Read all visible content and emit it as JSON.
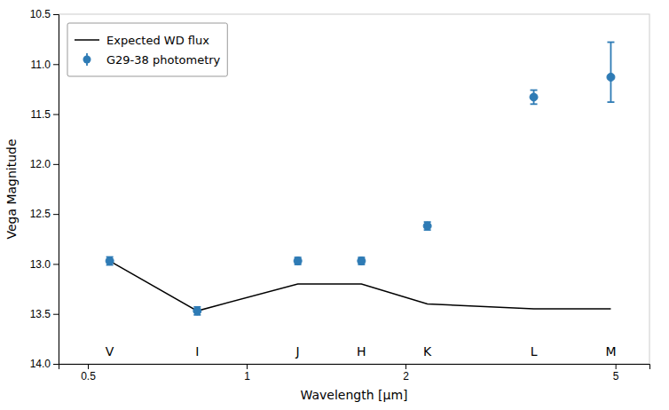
{
  "chart_data": {
    "type": "line",
    "xlabel": "Wavelength [μm]",
    "ylabel": "Vega Magnitude",
    "log": "x",
    "xlim": [
      0.44,
      5.8
    ],
    "xticks": [
      0.5,
      1,
      2,
      5
    ],
    "ylim": [
      14.0,
      10.5
    ],
    "yticks": [
      10.5,
      {
        "value": 11,
        "label": "11.0"
      },
      11.5,
      {
        "value": 12,
        "label": "12.0"
      },
      12.5,
      {
        "value": 13,
        "label": "13.0"
      },
      13.5,
      {
        "value": 14,
        "label": "14.0"
      }
    ],
    "grid": false,
    "legend": "upper left",
    "series": [
      {
        "name": "Expected WD flux",
        "type": "line",
        "color": "#000000",
        "x": [
          0.55,
          0.806,
          1.25,
          1.65,
          2.2,
          3.5,
          4.9
        ],
        "values": [
          12.97,
          13.47,
          13.2,
          13.2,
          13.4,
          13.45,
          13.45
        ]
      },
      {
        "name": "G29-38 photometry",
        "type": "scatter",
        "color": "#2e7bb5",
        "marker": "circle",
        "x": [
          0.55,
          0.806,
          1.25,
          1.65,
          2.2,
          3.5,
          4.9
        ],
        "values": [
          12.97,
          13.47,
          12.97,
          12.97,
          12.62,
          11.33,
          11.13
        ],
        "error_lo": [
          0.04,
          0.04,
          0.035,
          0.035,
          0.04,
          0.07,
          0.35
        ],
        "error_hi": [
          0.04,
          0.04,
          0.035,
          0.035,
          0.04,
          0.07,
          0.25
        ]
      }
    ],
    "annotations": [
      {
        "text": "V",
        "x": 0.55,
        "y": 13.83
      },
      {
        "text": "I",
        "x": 0.806,
        "y": 13.83
      },
      {
        "text": "J",
        "x": 1.25,
        "y": 13.83
      },
      {
        "text": "H",
        "x": 1.65,
        "y": 13.83
      },
      {
        "text": "K",
        "x": 2.2,
        "y": 13.83
      },
      {
        "text": "L",
        "x": 3.5,
        "y": 13.83
      },
      {
        "text": "M",
        "x": 4.9,
        "y": 13.83
      }
    ]
  }
}
